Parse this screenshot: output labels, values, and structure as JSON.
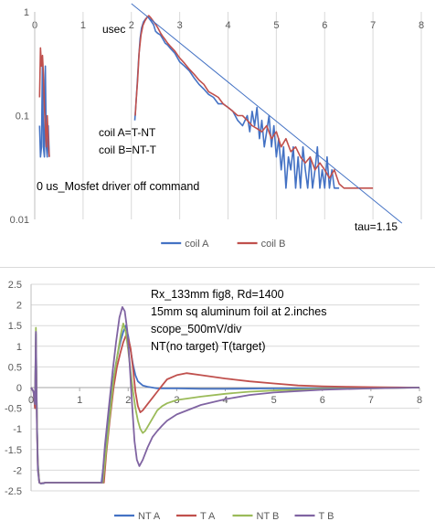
{
  "chart_data": [
    {
      "type": "line",
      "title": "",
      "xlabel": "",
      "ylabel": "",
      "y_scale": "log",
      "xlim": [
        0,
        8
      ],
      "ylim": [
        0.01,
        1
      ],
      "x_ticks": [
        "0",
        "1",
        "2",
        "3",
        "4",
        "5",
        "6",
        "7",
        "8"
      ],
      "y_ticks": [
        "0.01",
        "0.1",
        "1"
      ],
      "grid": "vertical",
      "legend": "bottom",
      "annotations": [
        "usec",
        "coil A=T-NT",
        "coil B=NT-T",
        "0 us_Mosfet driver off command",
        "tau=1.15"
      ],
      "series": [
        {
          "name": "coil  A",
          "color": "#4472c4",
          "x": [
            0.1,
            0.12,
            0.14,
            0.16,
            0.18,
            0.2,
            0.22,
            0.24,
            0.26,
            0.28,
            0.3,
            null,
            2.07,
            2.09,
            2.12,
            2.15,
            2.18,
            2.21,
            2.25,
            2.3,
            2.34,
            2.38,
            2.42,
            2.46,
            2.5,
            2.55,
            2.6,
            2.65,
            2.7,
            2.75,
            2.8,
            2.9,
            3.0,
            3.1,
            3.2,
            3.3,
            3.4,
            3.5,
            3.6,
            3.7,
            3.8,
            3.9,
            4.0,
            4.1,
            4.2,
            4.3,
            4.4,
            4.45,
            4.5,
            4.55,
            4.6,
            4.65,
            4.7,
            4.75,
            4.8,
            4.85,
            4.9,
            4.95,
            5.0,
            5.05,
            5.1,
            5.15,
            5.2,
            5.25,
            5.3,
            5.35,
            5.4,
            5.45,
            5.5,
            5.55,
            5.6,
            5.65,
            5.7,
            5.75,
            5.8,
            5.85,
            5.9,
            5.95,
            6.0,
            6.05,
            6.1,
            6.15,
            6.2,
            6.25,
            6.3
          ],
          "y": [
            0.08,
            0.04,
            0.05,
            0.35,
            0.05,
            0.04,
            0.3,
            0.05,
            0.04,
            0.08,
            0.04,
            null,
            0.09,
            0.12,
            0.2,
            0.35,
            0.55,
            0.7,
            0.8,
            0.86,
            0.9,
            0.85,
            0.8,
            0.75,
            0.65,
            0.62,
            0.6,
            0.55,
            0.5,
            0.48,
            0.45,
            0.4,
            0.33,
            0.3,
            0.27,
            0.23,
            0.2,
            0.18,
            0.16,
            0.15,
            0.13,
            0.13,
            0.12,
            0.11,
            0.09,
            0.08,
            0.1,
            0.07,
            0.11,
            0.08,
            0.12,
            0.06,
            0.09,
            0.05,
            0.07,
            0.1,
            0.05,
            0.08,
            0.04,
            0.06,
            0.03,
            0.05,
            0.02,
            0.04,
            0.03,
            0.05,
            0.02,
            0.04,
            0.02,
            0.05,
            0.03,
            0.02,
            0.04,
            0.02,
            0.03,
            0.05,
            0.02,
            0.03,
            0.02,
            0.04,
            0.02,
            0.03,
            0.02,
            0.02,
            0.02
          ]
        },
        {
          "name": "coil B",
          "color": "#c0504d",
          "x": [
            0.1,
            0.12,
            0.14,
            0.16,
            0.18,
            0.2,
            0.22,
            0.24,
            0.26,
            0.28,
            0.3,
            null,
            2.08,
            2.1,
            2.13,
            2.16,
            2.2,
            2.24,
            2.28,
            2.32,
            2.36,
            2.4,
            2.45,
            2.5,
            2.55,
            2.6,
            2.65,
            2.7,
            2.75,
            2.8,
            2.9,
            3.0,
            3.1,
            3.2,
            3.3,
            3.4,
            3.5,
            3.6,
            3.7,
            3.8,
            3.9,
            4.0,
            4.1,
            4.2,
            4.3,
            4.4,
            4.5,
            4.6,
            4.7,
            4.8,
            4.9,
            5.0,
            5.1,
            5.2,
            5.3,
            5.4,
            5.5,
            5.6,
            5.7,
            5.8,
            5.9,
            6.0,
            6.1,
            6.2,
            6.3,
            6.4,
            6.5,
            6.6,
            6.7,
            6.8,
            6.9,
            7.0
          ],
          "y": [
            0.15,
            0.45,
            0.3,
            0.38,
            0.25,
            0.12,
            0.08,
            0.05,
            0.1,
            0.06,
            0.04,
            null,
            0.1,
            0.14,
            0.22,
            0.4,
            0.6,
            0.74,
            0.82,
            0.88,
            0.92,
            0.88,
            0.82,
            0.76,
            0.7,
            0.63,
            0.58,
            0.54,
            0.5,
            0.47,
            0.42,
            0.36,
            0.32,
            0.28,
            0.25,
            0.22,
            0.2,
            0.17,
            0.16,
            0.15,
            0.13,
            0.12,
            0.11,
            0.1,
            0.1,
            0.09,
            0.08,
            0.075,
            0.07,
            0.08,
            0.06,
            0.07,
            0.05,
            0.06,
            0.045,
            0.05,
            0.04,
            0.035,
            0.04,
            0.03,
            0.035,
            0.03,
            0.025,
            0.03,
            0.022,
            0.02,
            0.02,
            0.02,
            0.02,
            0.02,
            0.02,
            0.02
          ]
        },
        {
          "name": "tau=1.15",
          "color": "#4472c4",
          "role": "trendline",
          "x": [
            2.0,
            7.6
          ],
          "y": [
            1.2,
            0.0092
          ]
        }
      ]
    },
    {
      "type": "line",
      "title": "",
      "xlabel": "",
      "ylabel": "",
      "xlim": [
        0,
        8
      ],
      "ylim": [
        -2.5,
        2.5
      ],
      "x_ticks": [
        "0",
        "1",
        "2",
        "3",
        "4",
        "5",
        "6",
        "7",
        "8"
      ],
      "y_ticks": [
        "2.5",
        "2",
        "1.5",
        "1",
        "0.5",
        "0",
        "-0.5",
        "-1",
        "-1.5",
        "-2",
        "-2.5"
      ],
      "grid": "horizontal",
      "legend": "bottom",
      "annotations": [
        "Rx_133mm fig8, Rd=1400",
        "15mm sq aluminum foil at 2.inches",
        "scope_500mV/div",
        "NT(no target)  T(target)"
      ],
      "series": [
        {
          "name": "NT A",
          "color": "#4472c4",
          "x": [
            0,
            0.05,
            0.08,
            0.1,
            0.12,
            0.14,
            0.17,
            0.2,
            0.25,
            0.3,
            0.4,
            1.0,
            1.45,
            1.52,
            1.6,
            1.68,
            1.75,
            1.8,
            1.85,
            1.9,
            1.95,
            2.0,
            2.05,
            2.1,
            2.15,
            2.2,
            2.3,
            2.4,
            2.5,
            2.6,
            2.8,
            3.0,
            3.5,
            4.0,
            5.0,
            6.0,
            7.0,
            8.0
          ],
          "y": [
            0,
            -0.1,
            -0.5,
            1.3,
            -0.8,
            -1.8,
            -2.3,
            -2.32,
            -2.32,
            -2.3,
            -2.3,
            -2.3,
            -2.3,
            -1.6,
            -0.7,
            0.1,
            0.6,
            0.9,
            1.15,
            1.35,
            1.5,
            1.25,
            0.9,
            0.55,
            0.3,
            0.15,
            0.05,
            0.02,
            0.0,
            -0.02,
            -0.02,
            -0.02,
            -0.03,
            -0.03,
            -0.02,
            -0.02,
            -0.01,
            0.0
          ]
        },
        {
          "name": "T A",
          "color": "#c0504d",
          "x": [
            0,
            0.05,
            0.08,
            0.1,
            0.12,
            0.14,
            0.17,
            0.2,
            0.3,
            1.0,
            1.5,
            1.55,
            1.62,
            1.7,
            1.77,
            1.84,
            1.9,
            1.95,
            2.0,
            2.05,
            2.1,
            2.15,
            2.2,
            2.25,
            2.3,
            2.4,
            2.5,
            2.6,
            2.7,
            2.8,
            3.0,
            3.2,
            3.5,
            4.0,
            4.5,
            5.0,
            5.5,
            6.0,
            6.5,
            7.0,
            8.0
          ],
          "y": [
            0,
            -0.1,
            -0.5,
            1.1,
            -0.9,
            -1.9,
            -2.3,
            -2.32,
            -2.3,
            -2.3,
            -2.3,
            -1.6,
            -0.8,
            0.0,
            0.5,
            0.85,
            1.1,
            1.25,
            1.2,
            0.95,
            0.45,
            -0.1,
            -0.45,
            -0.6,
            -0.55,
            -0.4,
            -0.25,
            -0.1,
            0.05,
            0.2,
            0.3,
            0.35,
            0.3,
            0.22,
            0.15,
            0.1,
            0.05,
            0.03,
            0.02,
            0.01,
            0.0
          ]
        },
        {
          "name": "NT B",
          "color": "#9bbb59",
          "x": [
            0,
            0.05,
            0.08,
            0.1,
            0.12,
            0.14,
            0.17,
            0.2,
            0.3,
            1.0,
            1.48,
            1.55,
            1.63,
            1.7,
            1.78,
            1.85,
            1.9,
            1.95,
            2.0,
            2.05,
            2.1,
            2.15,
            2.2,
            2.25,
            2.3,
            2.35,
            2.4,
            2.5,
            2.6,
            2.7,
            2.8,
            3.0,
            3.5,
            4.0,
            4.5,
            5.0,
            6.0,
            7.0,
            8.0
          ],
          "y": [
            0,
            -0.1,
            -0.4,
            1.45,
            -0.8,
            -1.9,
            -2.3,
            -2.32,
            -2.3,
            -2.3,
            -2.3,
            -1.5,
            -0.6,
            0.2,
            0.8,
            1.3,
            1.55,
            1.35,
            0.9,
            0.4,
            -0.1,
            -0.5,
            -0.8,
            -1.0,
            -1.1,
            -1.05,
            -0.95,
            -0.75,
            -0.55,
            -0.45,
            -0.38,
            -0.3,
            -0.22,
            -0.15,
            -0.1,
            -0.07,
            -0.03,
            -0.02,
            0.0
          ]
        },
        {
          "name": "T B",
          "color": "#8064a2",
          "x": [
            0,
            0.05,
            0.08,
            0.1,
            0.12,
            0.14,
            0.17,
            0.2,
            0.3,
            1.0,
            1.46,
            1.52,
            1.6,
            1.68,
            1.75,
            1.82,
            1.88,
            1.93,
            1.98,
            2.03,
            2.08,
            2.13,
            2.18,
            2.23,
            2.3,
            2.4,
            2.5,
            2.6,
            2.7,
            2.8,
            3.0,
            3.5,
            4.0,
            4.5,
            5.0,
            6.0,
            7.0,
            8.0
          ],
          "y": [
            0,
            -0.1,
            -0.4,
            1.35,
            -0.9,
            -2.0,
            -2.3,
            -2.32,
            -2.3,
            -2.3,
            -2.3,
            -1.4,
            -0.5,
            0.4,
            1.1,
            1.7,
            1.95,
            1.85,
            1.4,
            0.6,
            -0.4,
            -1.3,
            -1.75,
            -1.9,
            -1.75,
            -1.45,
            -1.2,
            -1.05,
            -0.92,
            -0.8,
            -0.65,
            -0.42,
            -0.28,
            -0.18,
            -0.12,
            -0.05,
            -0.02,
            0.0
          ]
        }
      ]
    }
  ]
}
